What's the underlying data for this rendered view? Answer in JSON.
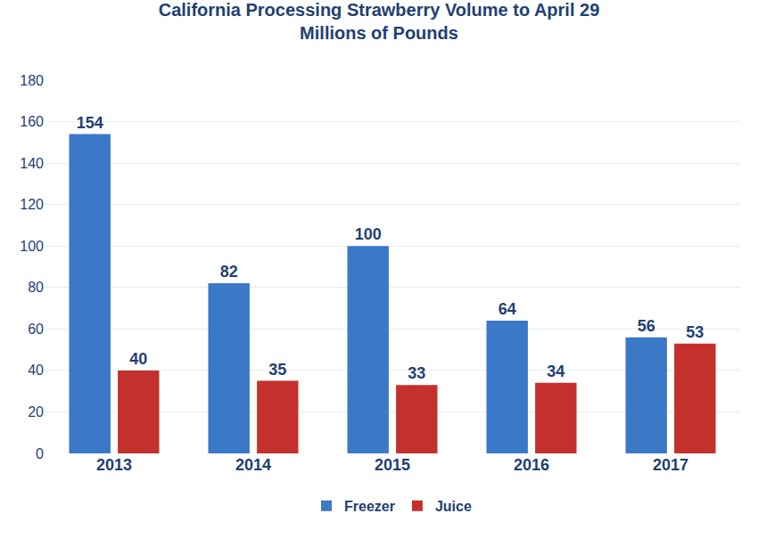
{
  "chart_data": {
    "type": "bar",
    "title": "California Processing Strawberry Volume to April 29",
    "subtitle": "Millions of Pounds",
    "categories": [
      "2013",
      "2014",
      "2015",
      "2016",
      "2017"
    ],
    "series": [
      {
        "name": "Freezer",
        "color": "#3a78c8",
        "values": [
          154,
          82,
          100,
          64,
          56
        ]
      },
      {
        "name": "Juice",
        "color": "#c4302c",
        "values": [
          40,
          35,
          33,
          34,
          53
        ]
      }
    ],
    "ylim": [
      0,
      180
    ],
    "yticks": [
      0,
      20,
      40,
      60,
      80,
      100,
      120,
      140,
      160,
      180
    ],
    "grid": true,
    "legend": "bottom",
    "data_labels": true
  }
}
